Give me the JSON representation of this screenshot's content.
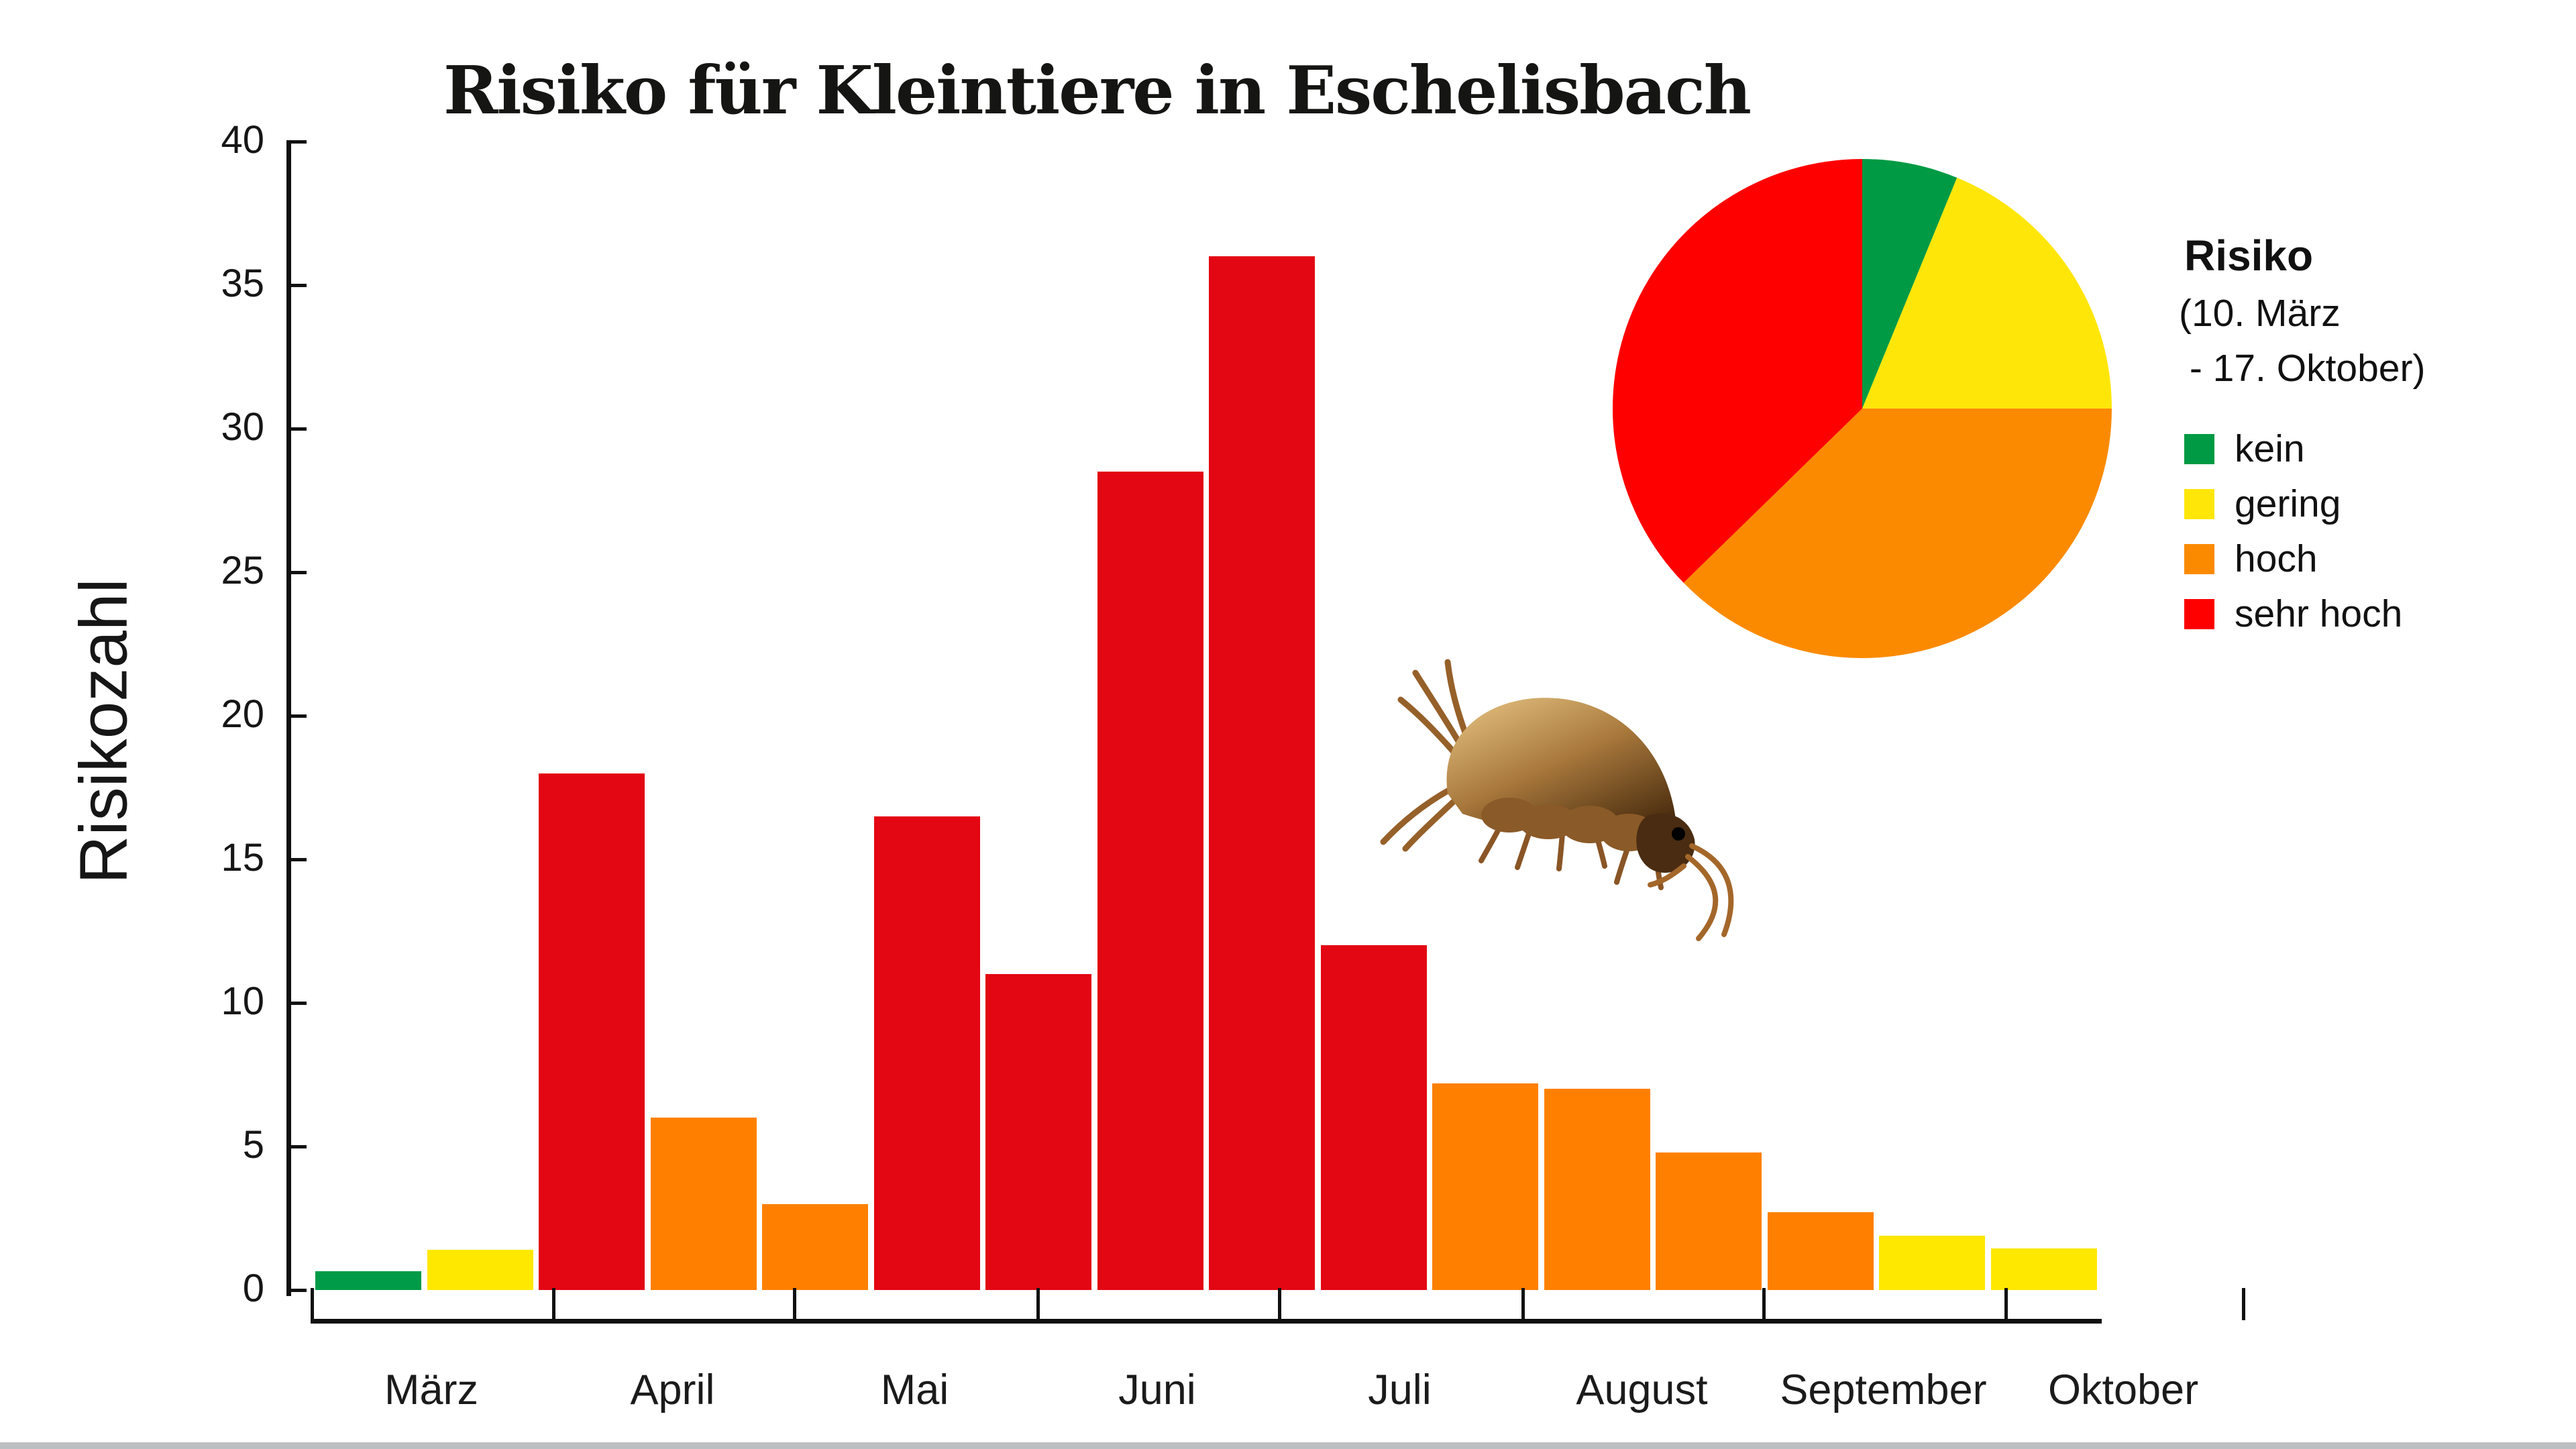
{
  "title": "Risiko für Kleintiere in Eschelisbach",
  "colors": {
    "bar": {
      "kein": "#009b48",
      "gering": "#ffe800",
      "hoch": "#ff8000",
      "sehr hoch": "#e30613"
    },
    "pie": {
      "kein": "#009a44",
      "gering": "#ffe609",
      "hoch": "#fb8a00",
      "sehr hoch": "#fe0000"
    },
    "axis": "#101010",
    "bottom_border_grey": "#bcbfc1"
  },
  "legend": {
    "title": "Risiko",
    "subtitle_line1": "(10. März",
    "subtitle_line2": " - 17. Oktober)",
    "items": [
      {
        "label": "kein",
        "risk": "kein"
      },
      {
        "label": "gering",
        "risk": "gering"
      },
      {
        "label": "hoch",
        "risk": "hoch"
      },
      {
        "label": "sehr hoch",
        "risk": "sehr hoch"
      }
    ]
  },
  "illustration": {
    "name": "amphipod",
    "description": "brown freshwater amphipod (Bachflohkrebs) drawing"
  },
  "chart_data": [
    {
      "type": "bar",
      "title": "Risiko für Kleintiere in Eschelisbach",
      "xlabel": "",
      "ylabel": "Risikozahl",
      "ylim": [
        0,
        40
      ],
      "yticks": [
        0,
        5,
        10,
        15,
        20,
        25,
        30,
        35,
        40
      ],
      "x_month_labels": [
        "März",
        "April",
        "Mai",
        "Juni",
        "Juli",
        "August",
        "September",
        "Oktober"
      ],
      "grid": false,
      "note": "16 roughly biweekly readings from 10. März to 17. Oktober, each bar colored by risk category",
      "bars": [
        {
          "value": 0.65,
          "risk": "kein"
        },
        {
          "value": 1.4,
          "risk": "gering"
        },
        {
          "value": 18,
          "risk": "sehr hoch"
        },
        {
          "value": 6,
          "risk": "hoch"
        },
        {
          "value": 3,
          "risk": "hoch"
        },
        {
          "value": 16.5,
          "risk": "sehr hoch"
        },
        {
          "value": 11,
          "risk": "sehr hoch"
        },
        {
          "value": 28.5,
          "risk": "sehr hoch"
        },
        {
          "value": 36,
          "risk": "sehr hoch"
        },
        {
          "value": 12,
          "risk": "sehr hoch"
        },
        {
          "value": 7.2,
          "risk": "hoch"
        },
        {
          "value": 7,
          "risk": "hoch"
        },
        {
          "value": 4.8,
          "risk": "hoch"
        },
        {
          "value": 2.7,
          "risk": "hoch"
        },
        {
          "value": 1.9,
          "risk": "gering"
        },
        {
          "value": 1.45,
          "risk": "gering"
        }
      ]
    },
    {
      "type": "pie",
      "title": "Risiko",
      "subtitle": "(10. März - 17. Oktober)",
      "start_angle_deg": 0,
      "direction": "clockwise",
      "legend_position": "right",
      "slices": [
        {
          "label": "kein",
          "percent": 6.2
        },
        {
          "label": "gering",
          "percent": 18.8
        },
        {
          "label": "hoch",
          "percent": 37.7
        },
        {
          "label": "sehr hoch",
          "percent": 37.3
        }
      ]
    }
  ]
}
